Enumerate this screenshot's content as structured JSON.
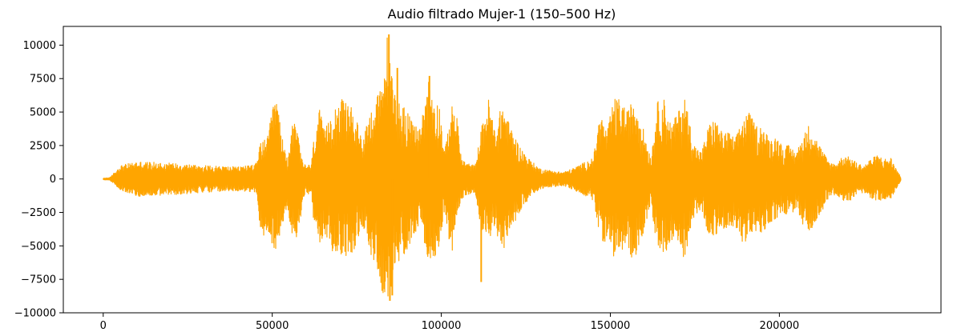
{
  "chart_data": {
    "type": "line",
    "title": "Audio filtrado Mujer-1 (150–500 Hz)",
    "xlabel": "",
    "ylabel": "",
    "xlim": [
      -11800,
      247800
    ],
    "ylim": [
      -10000,
      11400
    ],
    "xticks": [
      0,
      50000,
      100000,
      150000,
      200000
    ],
    "xtick_labels": [
      "0",
      "50000",
      "100000",
      "150000",
      "200000"
    ],
    "yticks": [
      -10000,
      -7500,
      -5000,
      -2500,
      0,
      2500,
      5000,
      7500,
      10000
    ],
    "ytick_labels": [
      "−10000",
      "−7500",
      "−5000",
      "−2500",
      "0",
      "2500",
      "5000",
      "7500",
      "10000"
    ],
    "grid": false,
    "legend": "none",
    "series": [
      {
        "color": "#FFA500",
        "x_range": [
          0,
          236000
        ],
        "envelope": {
          "x": [
            0,
            2000,
            5000,
            10000,
            20000,
            30000,
            40000,
            45500,
            46500,
            48500,
            51000,
            53000,
            54500,
            56000,
            57500,
            59000,
            61500,
            62500,
            64000,
            65500,
            68000,
            71000,
            74000,
            76500,
            79000,
            81000,
            82500,
            84000,
            85000,
            86000,
            88000,
            90000,
            91500,
            94000,
            96000,
            98000,
            99500,
            101000,
            103000,
            104500,
            106000,
            107500,
            110000,
            112000,
            114000,
            116000,
            118000,
            120000,
            123000,
            126000,
            129000,
            131000,
            133000,
            136000,
            139000,
            142000,
            145000,
            147000,
            149000,
            151000,
            153000,
            155000,
            157000,
            158500,
            160000,
            162000,
            164000,
            166000,
            168000,
            170000,
            172000,
            173500,
            175000,
            177000,
            179000,
            181000,
            183000,
            185000,
            187000,
            189000,
            191000,
            193000,
            195000,
            197000,
            199000,
            201000,
            203000,
            205000,
            207000,
            209000,
            211000,
            213000,
            215000,
            217000,
            219000,
            221000,
            223000,
            225000,
            227000,
            229000,
            231000,
            233000,
            234500,
            236000
          ],
          "max": [
            60,
            100,
            1000,
            1300,
            1200,
            1000,
            900,
            1200,
            2800,
            3000,
            6500,
            3000,
            1500,
            4500,
            3500,
            1200,
            1000,
            3500,
            5200,
            3500,
            5500,
            6000,
            5200,
            3000,
            5000,
            6300,
            6800,
            10800,
            8300,
            7000,
            5500,
            5500,
            4000,
            4000,
            7700,
            6000,
            5500,
            2000,
            5500,
            5000,
            1500,
            1200,
            1000,
            4000,
            6000,
            3500,
            5800,
            4200,
            2500,
            1500,
            800,
            700,
            600,
            500,
            800,
            1200,
            1600,
            5000,
            3500,
            6000,
            6000,
            5000,
            6200,
            5000,
            3500,
            1600,
            5800,
            6000,
            4000,
            5000,
            6200,
            4200,
            2500,
            2000,
            4000,
            4500,
            3500,
            3500,
            3000,
            4500,
            5000,
            4000,
            4000,
            3000,
            3200,
            2500,
            2500,
            2000,
            3200,
            4200,
            3000,
            2000,
            1200,
            1200,
            1800,
            1600,
            1200,
            1000,
            1500,
            1800,
            1500,
            1600,
            800,
            100
          ],
          "min": [
            -60,
            -100,
            -800,
            -1300,
            -1200,
            -1000,
            -900,
            -1000,
            -4800,
            -4000,
            -5400,
            -3500,
            -2000,
            -4500,
            -5000,
            -1500,
            -1000,
            -4000,
            -5000,
            -4300,
            -5500,
            -5800,
            -5500,
            -3500,
            -5800,
            -6500,
            -8500,
            -9100,
            -8500,
            -7500,
            -6000,
            -5500,
            -4200,
            -3500,
            -6200,
            -5800,
            -5000,
            -2200,
            -5800,
            -3500,
            -1500,
            -1200,
            -1000,
            -4000,
            -4500,
            -3800,
            -5500,
            -4200,
            -2500,
            -1500,
            -800,
            -600,
            -600,
            -500,
            -800,
            -1200,
            -1600,
            -4500,
            -4800,
            -5800,
            -5500,
            -5300,
            -6200,
            -5000,
            -3800,
            -1800,
            -5500,
            -5800,
            -4500,
            -5000,
            -6000,
            -4500,
            -2800,
            -2200,
            -4200,
            -4200,
            -3800,
            -4000,
            -3500,
            -4800,
            -4500,
            -4000,
            -4200,
            -3300,
            -3000,
            -2500,
            -2800,
            -2200,
            -3500,
            -4000,
            -3000,
            -2200,
            -1200,
            -1200,
            -1600,
            -1600,
            -1200,
            -1000,
            -1400,
            -1700,
            -1500,
            -1500,
            -800,
            -100
          ]
        },
        "peaks": [
          {
            "x": 84500,
            "y": 10800
          },
          {
            "x": 84800,
            "y": -9100
          },
          {
            "x": 96500,
            "y": 7700
          },
          {
            "x": 87000,
            "y": 8300
          },
          {
            "x": 85500,
            "y": -8700
          },
          {
            "x": 111800,
            "y": -7700
          }
        ]
      }
    ]
  }
}
